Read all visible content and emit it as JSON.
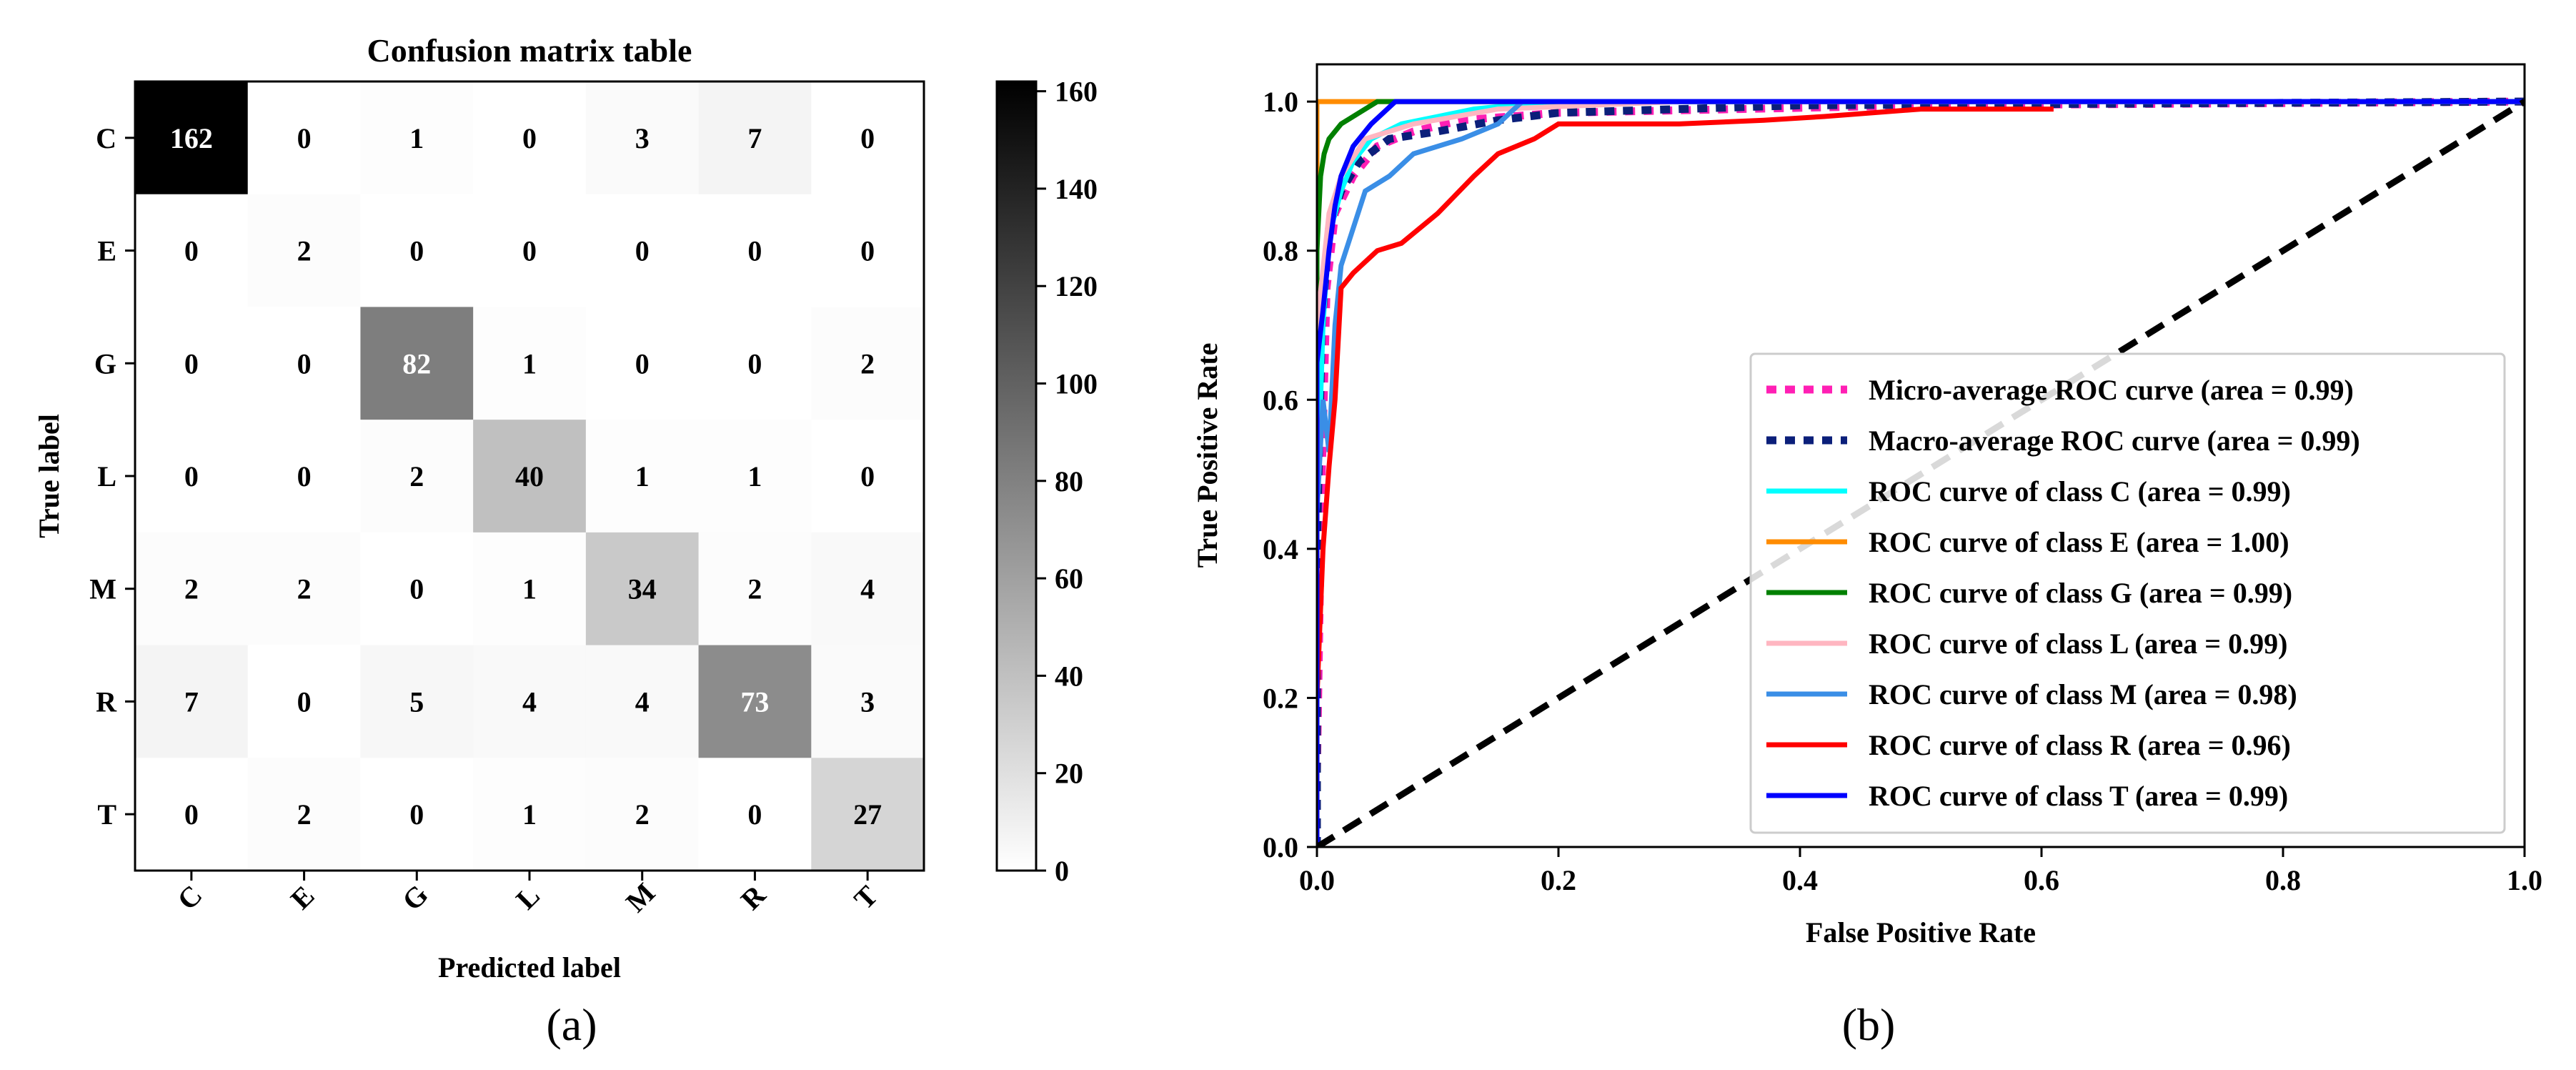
{
  "chart_data": [
    {
      "type": "heatmap",
      "title": "Confusion matrix table",
      "xlabel": "Predicted label",
      "ylabel": "True label",
      "caption": "(a)",
      "rows": [
        "C",
        "E",
        "G",
        "L",
        "M",
        "R",
        "T"
      ],
      "cols": [
        "C",
        "E",
        "G",
        "L",
        "M",
        "R",
        "T"
      ],
      "matrix": [
        [
          162,
          0,
          1,
          0,
          3,
          7,
          0
        ],
        [
          0,
          2,
          0,
          0,
          0,
          0,
          0
        ],
        [
          0,
          0,
          82,
          1,
          0,
          0,
          2
        ],
        [
          0,
          0,
          2,
          40,
          1,
          1,
          0
        ],
        [
          2,
          2,
          0,
          1,
          34,
          2,
          4
        ],
        [
          7,
          0,
          5,
          4,
          4,
          73,
          3
        ],
        [
          0,
          2,
          0,
          1,
          2,
          0,
          27
        ]
      ],
      "colorbar": {
        "min": 0,
        "max": 162,
        "ticks": [
          0,
          20,
          40,
          60,
          80,
          100,
          120,
          140,
          160
        ]
      }
    },
    {
      "type": "line",
      "caption": "(b)",
      "xlabel": "False Positive Rate",
      "ylabel": "True Positive Rate",
      "xlim": [
        0,
        1.0
      ],
      "ylim": [
        0,
        1.05
      ],
      "xticks": [
        "0.0",
        "0.2",
        "0.4",
        "0.6",
        "0.8",
        "1.0"
      ],
      "yticks": [
        "0.0",
        "0.2",
        "0.4",
        "0.6",
        "0.8",
        "1.0"
      ],
      "legend_position": "lower-right",
      "series": [
        {
          "name": "Micro-average ROC curve (area = 0.99)",
          "color": "#ff1fb4",
          "dash": "dotted",
          "x": [
            0,
            0,
            0.004,
            0.008,
            0.015,
            0.03,
            0.05,
            0.08,
            0.12,
            0.2,
            0.35,
            0.5,
            1.0
          ],
          "y": [
            0,
            0.1,
            0.5,
            0.75,
            0.85,
            0.9,
            0.94,
            0.96,
            0.975,
            0.985,
            0.99,
            0.995,
            1.0
          ]
        },
        {
          "name": "Macro-average ROC curve (area = 0.99)",
          "color": "#0b1f7a",
          "dash": "dotted",
          "x": [
            0,
            0,
            0.004,
            0.01,
            0.02,
            0.035,
            0.06,
            0.1,
            0.15,
            0.2,
            0.4,
            1.0
          ],
          "y": [
            0,
            0.4,
            0.7,
            0.83,
            0.88,
            0.92,
            0.95,
            0.96,
            0.975,
            0.985,
            0.995,
            1.0
          ]
        },
        {
          "name": "ROC curve of class C (area = 0.99)",
          "color": "#00ffff",
          "dash": "solid",
          "x": [
            0,
            0,
            0.005,
            0.01,
            0.02,
            0.03,
            0.045,
            0.07,
            0.1,
            0.13,
            0.16,
            0.2,
            1.0
          ],
          "y": [
            0,
            0.45,
            0.7,
            0.82,
            0.88,
            0.92,
            0.95,
            0.97,
            0.98,
            0.99,
            0.995,
            1.0,
            1.0
          ]
        },
        {
          "name": "ROC curve of class E (area = 1.00)",
          "color": "#ff8c00",
          "dash": "solid",
          "x": [
            0,
            0,
            1.0
          ],
          "y": [
            0,
            1.0,
            1.0
          ]
        },
        {
          "name": "ROC curve of class G (area = 0.99)",
          "color": "#008000",
          "dash": "solid",
          "x": [
            0,
            0,
            0.003,
            0.006,
            0.01,
            0.015,
            0.02,
            0.03,
            0.05,
            1.0
          ],
          "y": [
            0,
            0.8,
            0.9,
            0.93,
            0.95,
            0.96,
            0.97,
            0.98,
            1.0,
            1.0
          ]
        },
        {
          "name": "ROC curve of class L (area = 0.99)",
          "color": "#ffb6c1",
          "dash": "solid",
          "x": [
            0,
            0,
            0.01,
            0.02,
            0.04,
            0.08,
            0.15,
            0.3,
            1.0
          ],
          "y": [
            0,
            0.7,
            0.85,
            0.9,
            0.95,
            0.97,
            0.99,
            1.0,
            1.0
          ]
        },
        {
          "name": "ROC curve of class M (area = 0.98)",
          "color": "#3a8ee6",
          "dash": "solid",
          "x": [
            0,
            0,
            0.005,
            0.01,
            0.015,
            0.02,
            0.03,
            0.04,
            0.06,
            0.08,
            0.12,
            0.15,
            0.17,
            1.0
          ],
          "y": [
            0,
            0.45,
            0.6,
            0.53,
            0.7,
            0.78,
            0.83,
            0.88,
            0.9,
            0.93,
            0.95,
            0.97,
            1.0,
            1.0
          ]
        },
        {
          "name": "ROC curve of class R (area = 0.96)",
          "color": "#ff0000",
          "dash": "solid",
          "x": [
            0,
            0,
            0.005,
            0.01,
            0.015,
            0.02,
            0.03,
            0.05,
            0.07,
            0.1,
            0.13,
            0.15,
            0.18,
            0.2,
            0.25,
            0.3,
            0.37,
            0.42,
            0.5,
            0.61
          ],
          "y": [
            0,
            0.2,
            0.4,
            0.51,
            0.6,
            0.75,
            0.77,
            0.8,
            0.81,
            0.85,
            0.9,
            0.93,
            0.95,
            0.97,
            0.97,
            0.97,
            0.975,
            0.98,
            0.99,
            0.99
          ]
        },
        {
          "name": "ROC curve of class T (area = 0.99)",
          "color": "#0000ff",
          "dash": "solid",
          "x": [
            0,
            0,
            0.005,
            0.01,
            0.015,
            0.02,
            0.03,
            0.045,
            0.065,
            1.0
          ],
          "y": [
            0,
            0.65,
            0.72,
            0.8,
            0.86,
            0.9,
            0.94,
            0.97,
            1.0,
            1.0
          ]
        },
        {
          "name": "chance",
          "color": "#000000",
          "dash": "dashed",
          "legend": false,
          "x": [
            0,
            1.0
          ],
          "y": [
            0,
            1.0
          ]
        }
      ]
    }
  ]
}
